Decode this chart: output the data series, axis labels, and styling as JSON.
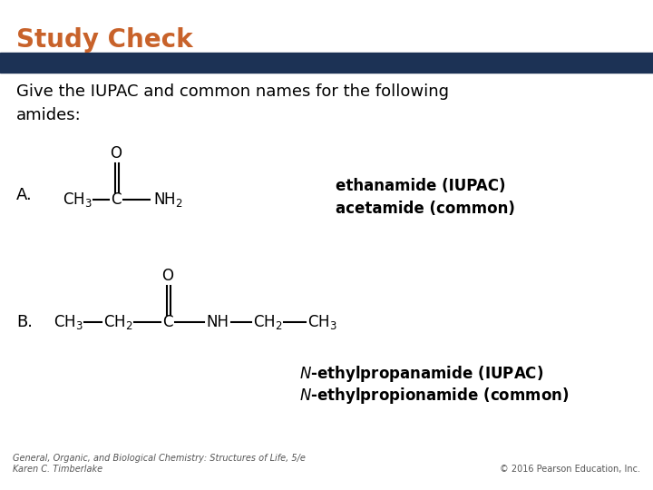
{
  "title": "Study Check",
  "title_color": "#C8622A",
  "title_fontsize": 20,
  "banner_color": "#1C3255",
  "bg_color": "#FFFFFF",
  "question_text": "Give the IUPAC and common names for the following\namides:",
  "question_fontsize": 13,
  "label_A": "A.",
  "label_B": "B.",
  "answer_A_line1": "ethanamide (IUPAC)",
  "answer_A_line2": "acetamide (common)",
  "answer_B_line1": "N-ethylpropanamide (IUPAC)",
  "answer_B_line2": "N-ethylpropionamide (common)",
  "footer_left": "General, Organic, and Biological Chemistry: Structures of Life, 5/e\nKaren C. Timberlake",
  "footer_right": "© 2016 Pearson Education, Inc.",
  "footer_fontsize": 7,
  "text_color": "#000000",
  "struct_fontsize": 12
}
